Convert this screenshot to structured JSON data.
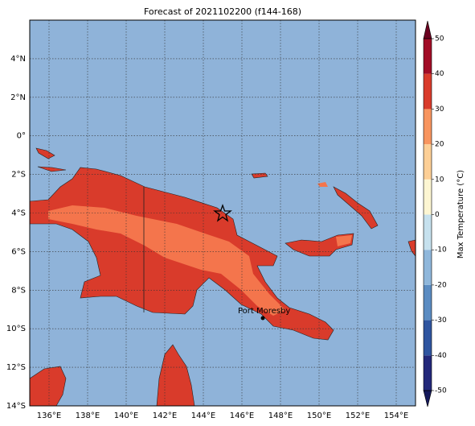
{
  "map": {
    "title": "Forecast of 2021102200 (f144-168)",
    "lon_range": [
      135,
      155
    ],
    "lat_range": [
      -14,
      6
    ],
    "lon_ticks": [
      {
        "value": 136,
        "label": "136°E"
      },
      {
        "value": 138,
        "label": "138°E"
      },
      {
        "value": 140,
        "label": "140°E"
      },
      {
        "value": 142,
        "label": "142°E"
      },
      {
        "value": 144,
        "label": "144°E"
      },
      {
        "value": 146,
        "label": "146°E"
      },
      {
        "value": 148,
        "label": "148°E"
      },
      {
        "value": 150,
        "label": "150°E"
      },
      {
        "value": 152,
        "label": "152°E"
      },
      {
        "value": 154,
        "label": "154°E"
      }
    ],
    "lat_ticks": [
      {
        "value": 4,
        "label": "4°N"
      },
      {
        "value": 2,
        "label": "2°N"
      },
      {
        "value": 0,
        "label": "0°"
      },
      {
        "value": -2,
        "label": "2°S"
      },
      {
        "value": -4,
        "label": "4°S"
      },
      {
        "value": -6,
        "label": "6°S"
      },
      {
        "value": -8,
        "label": "8°S"
      },
      {
        "value": -10,
        "label": "10°S"
      },
      {
        "value": -12,
        "label": "12°S"
      },
      {
        "value": -14,
        "label": "14°S"
      }
    ],
    "colorbar": {
      "label": "Max Temperature (°C)",
      "range": [
        -50,
        50
      ],
      "ticks": [
        -50,
        -40,
        -30,
        -20,
        -10,
        0,
        10,
        20,
        30,
        40,
        50
      ],
      "colors": [
        "#23287a",
        "#2f55a0",
        "#5b8cc2",
        "#8fb7db",
        "#c6e1ee",
        "#fdf6d2",
        "#fdcf96",
        "#f8955f",
        "#d93b2b",
        "#a20d27"
      ],
      "extend_colors": [
        "#161a5c",
        "#6b0020"
      ]
    },
    "city": {
      "label": "Port Moresby",
      "lon": 147.2,
      "lat": -9.4
    },
    "marker": {
      "lon": 145,
      "lat": -4
    }
  }
}
